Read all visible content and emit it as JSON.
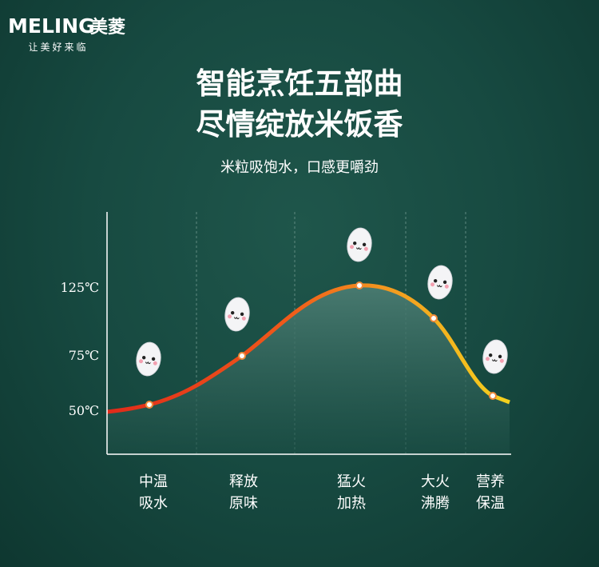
{
  "brand": {
    "logo": "MELING",
    "logo_cn": "美菱",
    "tagline": "让美好来临"
  },
  "header": {
    "title_lines": [
      "智能烹饪五部曲",
      "尽情绽放米饭香"
    ],
    "subtitle": "米粒吸饱水，口感更嚼劲"
  },
  "axis": {
    "labels": [
      "125℃",
      "75℃",
      "50℃"
    ]
  },
  "stages": [
    {
      "lines": [
        "中温",
        "吸水"
      ]
    },
    {
      "lines": [
        "释放",
        "原味"
      ]
    },
    {
      "lines": [
        "猛火",
        "加热"
      ]
    },
    {
      "lines": [
        "大火",
        "沸腾"
      ]
    },
    {
      "lines": [
        "营养",
        "保温"
      ]
    }
  ]
}
